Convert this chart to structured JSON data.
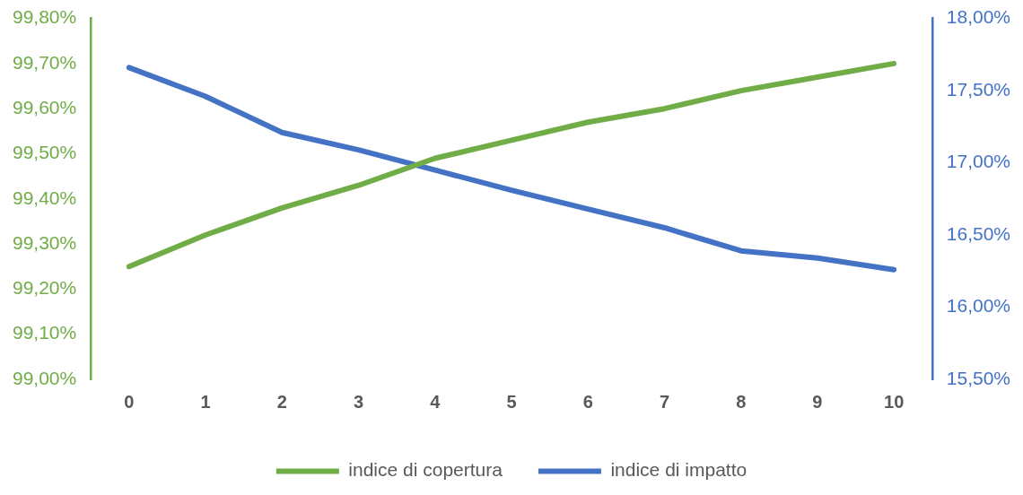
{
  "chart_data": {
    "type": "line",
    "categories": [
      "0",
      "1",
      "2",
      "3",
      "4",
      "5",
      "6",
      "7",
      "8",
      "9",
      "10"
    ],
    "series": [
      {
        "name": "indice di copertura",
        "color": "#70ad47",
        "values": [
          99.25,
          99.32,
          99.38,
          99.43,
          99.49,
          99.53,
          99.57,
          99.6,
          99.64,
          99.67,
          99.7
        ]
      },
      {
        "name": "indice di impatto",
        "color": "#4472c4",
        "axis": "y2",
        "values": [
          17.66,
          17.46,
          17.21,
          17.09,
          16.95,
          16.81,
          16.68,
          16.55,
          16.39,
          16.34,
          16.26
        ]
      }
    ],
    "ylim": [
      99,
      99.8
    ],
    "yticks": [
      {
        "value": 99,
        "label": "99,00%"
      },
      {
        "value": 99.1,
        "label": "99,10%"
      },
      {
        "value": 99.2,
        "label": "99,20%"
      },
      {
        "value": 99.3,
        "label": "99,30%"
      },
      {
        "value": 99.4,
        "label": "99,40%"
      },
      {
        "value": 99.5,
        "label": "99,50%"
      },
      {
        "value": 99.6,
        "label": "99,60%"
      },
      {
        "value": 99.7,
        "label": "99,70%"
      },
      {
        "value": 99.8,
        "label": "99,80%"
      }
    ],
    "y2lim": [
      15.5,
      18
    ],
    "y2ticks": [
      {
        "value": 15.5,
        "label": "15,50%"
      },
      {
        "value": 16,
        "label": "16,00%"
      },
      {
        "value": 16.5,
        "label": "16,50%"
      },
      {
        "value": 17,
        "label": "17,00%"
      },
      {
        "value": 17.5,
        "label": "17,50%"
      },
      {
        "value": 18,
        "label": "18,00%"
      }
    ],
    "grid": false,
    "legend": "bottom",
    "marker": "none"
  }
}
